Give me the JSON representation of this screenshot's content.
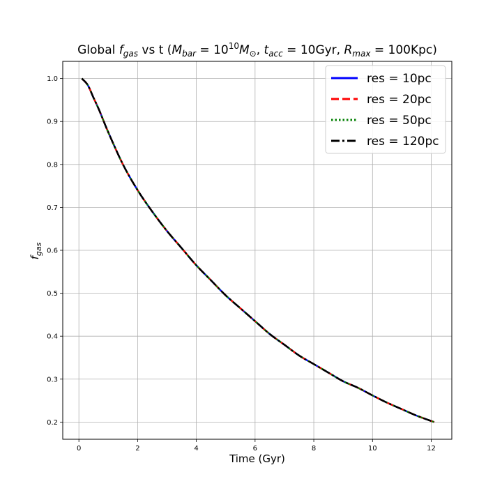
{
  "chart_data": {
    "type": "line",
    "title": {
      "prefix": "Global ",
      "f": "f",
      "f_sub": "gas",
      "mid": " vs t (",
      "m": "M",
      "m_sub": "bar",
      "eq1": " = 10",
      "exp": "10",
      "m2": "M",
      "m2_sub": "⊙",
      "sep1": ", ",
      "t": "t",
      "t_sub": "acc",
      "eq2": " = 10Gyr, ",
      "r": "R",
      "r_sub": "max",
      "eq3": " = 100Kpc)"
    },
    "xlabel": "Time (Gyr)",
    "ylabel": {
      "f": "f",
      "sub": "gas"
    },
    "xlim": [
      -0.55,
      12.7
    ],
    "ylim": [
      0.16,
      1.04
    ],
    "xticks": [
      0,
      2,
      4,
      6,
      8,
      10,
      12
    ],
    "xtick_labels": [
      "0",
      "2",
      "4",
      "6",
      "8",
      "10",
      "12"
    ],
    "yticks": [
      0.2,
      0.3,
      0.4,
      0.5,
      0.6,
      0.7,
      0.8,
      0.9,
      1.0
    ],
    "ytick_labels": [
      "0.2",
      "0.3",
      "0.4",
      "0.5",
      "0.6",
      "0.7",
      "0.8",
      "0.9",
      "1.0"
    ],
    "grid": true,
    "legend_position": "top-right",
    "x": [
      0.1,
      0.3,
      0.5,
      0.7,
      1.0,
      1.5,
      2.0,
      2.5,
      3.0,
      3.5,
      4.0,
      4.5,
      5.0,
      5.5,
      6.0,
      6.5,
      7.0,
      7.5,
      8.0,
      8.5,
      9.0,
      9.5,
      10.0,
      10.5,
      11.0,
      11.5,
      12.1
    ],
    "series": [
      {
        "name": "res = 10pc",
        "legend": {
          "pre": "res",
          "eq": " = ",
          "val": "10pc"
        },
        "color": "#0000ff",
        "dash": "solid",
        "values": [
          1.0,
          0.985,
          0.955,
          0.925,
          0.875,
          0.8,
          0.74,
          0.69,
          0.645,
          0.605,
          0.565,
          0.53,
          0.495,
          0.465,
          0.435,
          0.405,
          0.38,
          0.355,
          0.335,
          0.315,
          0.295,
          0.28,
          0.262,
          0.245,
          0.23,
          0.215,
          0.2
        ]
      },
      {
        "name": "res = 20pc",
        "legend": {
          "pre": "res",
          "eq": " = ",
          "val": "20pc"
        },
        "color": "#ff0000",
        "dash": "dashed",
        "values": [
          1.0,
          0.985,
          0.955,
          0.925,
          0.875,
          0.8,
          0.74,
          0.69,
          0.645,
          0.605,
          0.565,
          0.53,
          0.495,
          0.465,
          0.435,
          0.405,
          0.38,
          0.355,
          0.335,
          0.315,
          0.295,
          0.28,
          0.262,
          0.245,
          0.23,
          0.215,
          0.2
        ]
      },
      {
        "name": "res = 50pc",
        "legend": {
          "pre": "res",
          "eq": " = ",
          "val": "50pc"
        },
        "color": "#008000",
        "dash": "dotted",
        "values": [
          1.0,
          0.985,
          0.955,
          0.925,
          0.875,
          0.8,
          0.74,
          0.69,
          0.645,
          0.605,
          0.565,
          0.53,
          0.495,
          0.465,
          0.435,
          0.405,
          0.38,
          0.355,
          0.335,
          0.315,
          0.295,
          0.28,
          0.262,
          0.245,
          0.23,
          0.215,
          0.2
        ]
      },
      {
        "name": "res = 120pc",
        "legend": {
          "pre": "res",
          "eq": " = ",
          "val": "120pc"
        },
        "color": "#000000",
        "dash": "dashdot",
        "values": [
          1.0,
          0.985,
          0.955,
          0.925,
          0.875,
          0.8,
          0.74,
          0.69,
          0.645,
          0.605,
          0.565,
          0.53,
          0.495,
          0.465,
          0.435,
          0.405,
          0.38,
          0.355,
          0.335,
          0.315,
          0.295,
          0.28,
          0.262,
          0.245,
          0.23,
          0.215,
          0.2
        ]
      }
    ]
  }
}
